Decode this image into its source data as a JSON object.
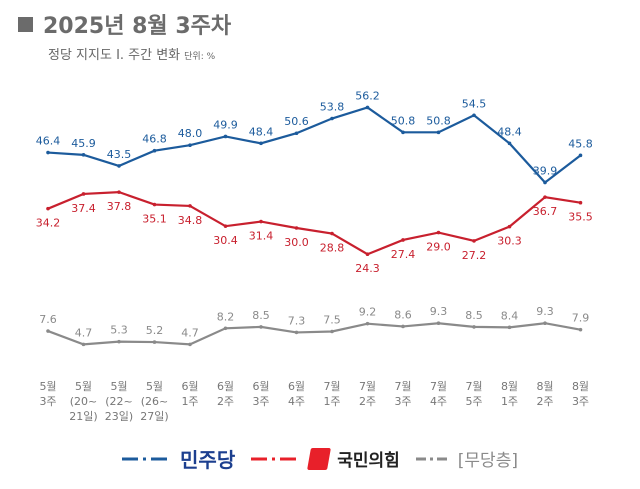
{
  "title": "2025년 8월 3주차",
  "subtitle": "정당 지지도 Ⅰ. 주간 변화",
  "unit": "단위: %",
  "chart_data": {
    "type": "line",
    "categories": [
      "5월\n3주",
      "5월\n(20~\n21일)",
      "5월\n(22~\n23일)",
      "5월\n(26~\n27일)",
      "6월\n1주",
      "6월\n2주",
      "6월\n3주",
      "6월\n4주",
      "7월\n1주",
      "7월\n2주",
      "7월\n3주",
      "7월\n4주",
      "7월\n5주",
      "8월\n1주",
      "8월\n2주",
      "8월\n3주"
    ],
    "series": [
      {
        "name": "민주당",
        "color": "#1c5b9c",
        "label_pos": "above",
        "values": [
          46.4,
          45.9,
          43.5,
          46.8,
          48.0,
          49.9,
          48.4,
          50.6,
          53.8,
          56.2,
          50.8,
          50.8,
          54.5,
          48.4,
          39.9,
          45.8
        ]
      },
      {
        "name": "국민의힘",
        "color": "#c8202e",
        "label_pos": "below",
        "values": [
          34.2,
          37.4,
          37.8,
          35.1,
          34.8,
          30.4,
          31.4,
          30.0,
          28.8,
          24.3,
          27.4,
          29.0,
          27.2,
          30.3,
          36.7,
          35.5
        ]
      },
      {
        "name": "[무당층]",
        "color": "#8a8a8a",
        "label_pos": "above",
        "values": [
          7.6,
          4.7,
          5.3,
          5.2,
          4.7,
          8.2,
          8.5,
          7.3,
          7.5,
          9.2,
          8.6,
          9.3,
          8.5,
          8.4,
          9.3,
          7.9
        ]
      }
    ],
    "unit": "%",
    "grid": false,
    "legend": "bottom"
  },
  "legend": {
    "logo_small_text": "더불어"
  }
}
